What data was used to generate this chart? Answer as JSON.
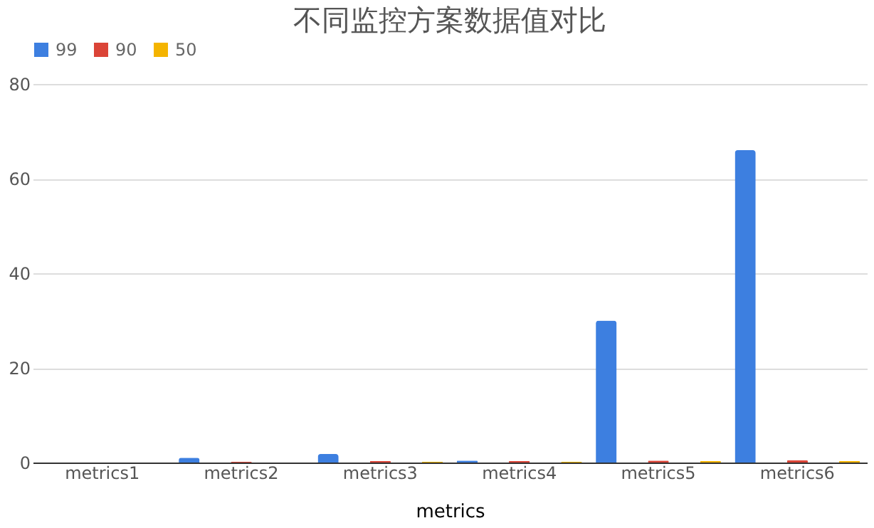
{
  "chart_data": {
    "type": "bar",
    "title": "不同监控方案数据值对比",
    "xlabel": "metrics",
    "categories": [
      "metrics1",
      "metrics2",
      "metrics3",
      "metrics4",
      "metrics5",
      "metrics6"
    ],
    "series": [
      {
        "name": "99",
        "color": "#3d7fe0",
        "values": [
          null,
          1,
          1.8,
          0.4,
          30,
          66
        ]
      },
      {
        "name": "90",
        "color": "#db4437",
        "values": [
          null,
          0.2,
          0.3,
          0.3,
          0.4,
          0.5
        ]
      },
      {
        "name": "50",
        "color": "#f4b400",
        "values": [
          null,
          null,
          0.2,
          0.2,
          0.3,
          0.3
        ]
      }
    ],
    "ylim": [
      0,
      80
    ],
    "yticks": [
      0,
      20,
      40,
      60,
      80
    ],
    "grid": "y",
    "legend": "top"
  }
}
